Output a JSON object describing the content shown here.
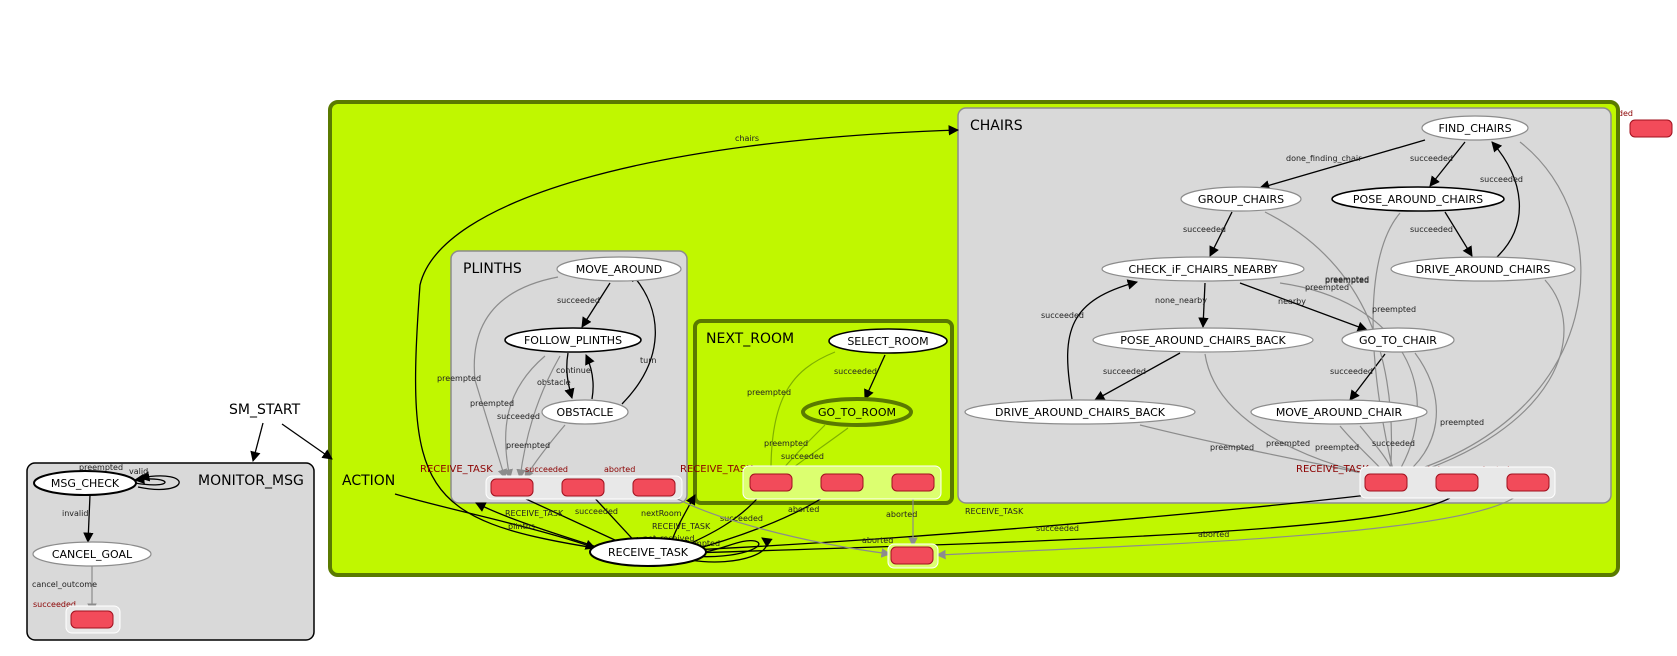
{
  "colors": {
    "action_fill": "#c0f700",
    "action_border": "#5a7a00",
    "container_fill": "#d9d9d9",
    "outcome_fill": "#f24b5a",
    "outcome_border": "#a0101e",
    "active_border": "#5a7a00"
  },
  "containers": {
    "action": "ACTION",
    "plinths": "PLINTHS",
    "next_room": "NEXT_ROOM",
    "chairs": "CHAIRS",
    "monitor": "MONITOR_MSG"
  },
  "states": {
    "sm_start": "SM_START",
    "msg_check": "MSG_CHECK",
    "cancel_goal": "CANCEL_GOAL",
    "receive_task": "RECEIVE_TASK",
    "move_around": "MOVE_AROUND",
    "follow_plinths": "FOLLOW_PLINTHS",
    "obstacle": "OBSTACLE",
    "select_room": "SELECT_ROOM",
    "go_to_room": "GO_TO_ROOM",
    "find_chairs": "FIND_CHAIRS",
    "group_chairs": "GROUP_CHAIRS",
    "pose_around_chairs": "POSE_AROUND_CHAIRS",
    "check_if_chairs_nearby": "CHECK_iF_CHAIRS_NEARBY",
    "drive_around_chairs": "DRIVE_AROUND_CHAIRS",
    "pose_around_chairs_back": "POSE_AROUND_CHAIRS_BACK",
    "go_to_chair": "GO_TO_CHAIR",
    "drive_around_chairs_back": "DRIVE_AROUND_CHAIRS_BACK",
    "move_around_chair": "MOVE_AROUND_CHAIR"
  },
  "outcome_labels": {
    "top_succeeded": "succeeded",
    "plinths_receive_task": "RECEIVE_TASK",
    "plinths_succeeded": "succeeded",
    "plinths_aborted": "aborted",
    "next_room_receive_task": "RECEIVE_TASK",
    "next_room_succeeded": "succeeded",
    "next_room_aborted": "aborted",
    "chairs_receive_task": "RECEIVE_TASK",
    "chairs_succeeded": "succeeded",
    "chairs_aborted": "aborted",
    "monitor_succeeded": "succeeded"
  },
  "edge_labels": {
    "chairs": "chairs",
    "plinths": "plinths",
    "nextRoom": "nextRoom",
    "not_received": "not_received",
    "preempted": "preempted",
    "receive_task_1": "RECEIVE_TASK",
    "receive_task_2": "RECEIVE_TASK",
    "receive_task_3": "RECEIVE_TASK",
    "succeeded_1": "succeeded",
    "succeeded_2": "succeeded",
    "succeeded_3": "succeeded",
    "aborted_1": "aborted",
    "aborted_2": "aborted",
    "aborted_3": "aborted",
    "aborted_4": "aborted",
    "m_preempted": "preempted",
    "m_valid": "valid",
    "m_invalid": "invalid",
    "m_cancel_outcome": "cancel_outcome",
    "p_succeeded": "succeeded",
    "p_continue": "continue",
    "p_obstacle": "obstacle",
    "p_turn": "turn",
    "p_preempted_1": "preempted",
    "p_preempted_2": "preempted",
    "p_preempted_3": "preempted",
    "p_succeeded_2": "succeeded",
    "n_succeeded": "succeeded",
    "n_preempted_1": "preempted",
    "n_preempted_2": "preempted",
    "n_succeeded_2": "succeeded",
    "c_done_finding_chair": "done_finding_chair",
    "c_succeeded_1": "succeeded",
    "c_succeeded_2": "succeeded",
    "c_succeeded_3": "succeeded",
    "c_succeeded_4": "succeeded",
    "c_succeeded_5": "succeeded",
    "c_succeeded_6": "succeeded",
    "c_succeeded_7": "succeeded",
    "c_succeeded_8": "succeeded",
    "c_none_nearby": "none_nearby",
    "c_nearby": "nearby",
    "c_preempted_1": "preempted",
    "c_preempted_2": "preempted",
    "c_preempted_3": "preempted",
    "c_preempted_4": "preempted",
    "c_preempted_5": "preempted",
    "c_preempted_6": "preempted",
    "c_preempted_7": "preempted",
    "c_preempted_8": "preempted"
  }
}
